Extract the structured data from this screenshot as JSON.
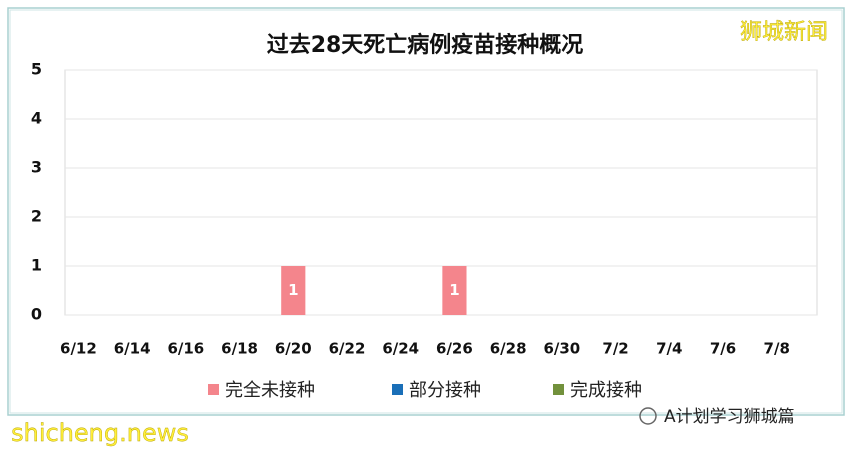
{
  "chart_data": {
    "type": "stacked_bar",
    "title": "过去28天死亡病例疫苗接种概况",
    "categories": [
      "6/12",
      null,
      "6/14",
      null,
      "6/16",
      null,
      "6/18",
      null,
      "6/20",
      null,
      "6/22",
      null,
      "6/24",
      null,
      "6/26",
      null,
      "6/28",
      null,
      "6/30",
      null,
      "7/2",
      null,
      "7/4",
      null,
      "7/6",
      null,
      "7/8",
      null
    ],
    "series": [
      {
        "name": "完全未接种",
        "color": "#f4858c",
        "values": [
          null,
          null,
          null,
          null,
          null,
          null,
          null,
          null,
          1,
          null,
          null,
          null,
          null,
          null,
          1,
          null,
          null,
          null,
          null,
          null,
          null,
          null,
          null,
          null,
          null,
          null,
          null,
          null
        ]
      },
      {
        "name": "部分接种",
        "color": "#1a6fb8",
        "values": [
          null,
          null,
          null,
          null,
          null,
          null,
          null,
          null,
          null,
          null,
          null,
          null,
          null,
          null,
          null,
          null,
          null,
          null,
          null,
          null,
          null,
          null,
          null,
          null,
          null,
          null,
          null,
          null
        ]
      },
      {
        "name": "完成接种",
        "color": "#72913c",
        "values": [
          null,
          null,
          null,
          null,
          null,
          null,
          null,
          null,
          null,
          null,
          null,
          null,
          null,
          null,
          null,
          null,
          null,
          null,
          null,
          null,
          null,
          null,
          null,
          null,
          null,
          null,
          null,
          null
        ]
      }
    ],
    "ylim": [
      0,
      5
    ],
    "yticks": [
      0,
      1,
      2,
      3,
      4,
      5
    ],
    "grid": true,
    "data_labels": true
  },
  "watermark": "狮城新闻",
  "source": "shicheng.news",
  "account": "A计划学习狮城篇"
}
